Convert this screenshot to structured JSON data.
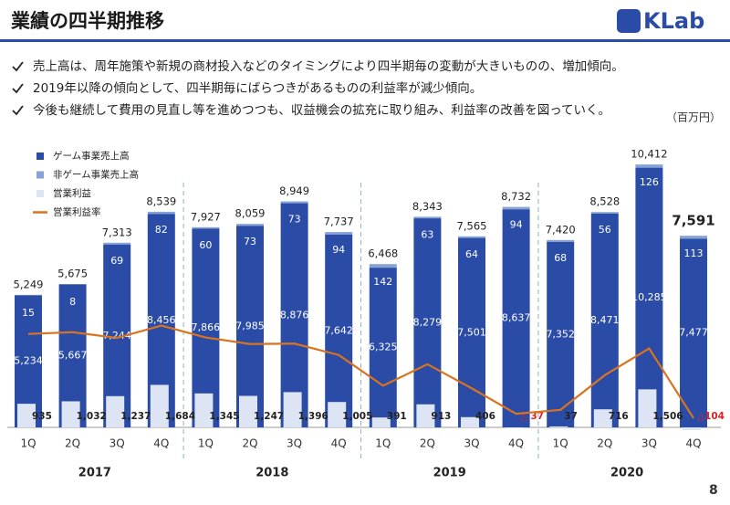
{
  "header": {
    "title": "業績の四半期推移",
    "logo": "KLab"
  },
  "bullets": [
    "売上高は、周年施策や新規の商材投入などのタイミングにより四半期毎の変動が大きいものの、増加傾向。",
    "2019年以降の傾向として、四半期毎にばらつきがあるものの利益率が減少傾向。",
    "今後も継続して費用の見直し等を進めつつも、収益機会の拡充に取り組み、利益率の改善を図っていく。"
  ],
  "page_number": "8",
  "chart_data": {
    "type": "bar",
    "unit_label": "（百万円）",
    "categories": [
      "1Q",
      "2Q",
      "3Q",
      "4Q",
      "1Q",
      "2Q",
      "3Q",
      "4Q",
      "1Q",
      "2Q",
      "3Q",
      "4Q",
      "1Q",
      "2Q",
      "3Q",
      "4Q"
    ],
    "groups": [
      "2017",
      "2018",
      "2019",
      "2020"
    ],
    "ylim": [
      0,
      11500
    ],
    "y2lim": [
      -3.5,
      62.7
    ],
    "total_labels": [
      "5,249",
      "5,675",
      "7,313",
      "8,539",
      "7,927",
      "8,059",
      "8,949",
      "7,737",
      "6,468",
      "8,343",
      "7,565",
      "8,732",
      "7,420",
      "8,528",
      "10,412",
      "7,591"
    ],
    "series": [
      {
        "name": "ゲーム事業売上高",
        "color": "#2b4ca6",
        "stack": "sales",
        "values": [
          5234,
          5667,
          7244,
          8456,
          7866,
          7985,
          8876,
          7642,
          6325,
          8279,
          7501,
          8637,
          7352,
          8471,
          10285,
          7477
        ],
        "value_labels": [
          "5,234",
          "5,667",
          "7,244",
          "8,456",
          "7,866",
          "7,985",
          "8,876",
          "7,642",
          "6,325",
          "8,279",
          "7,501",
          "8,637",
          "7,352",
          "8,471",
          "10,285",
          "7,477"
        ]
      },
      {
        "name": "非ゲーム事業売上高",
        "color": "#86a3d6",
        "stack": "sales",
        "values": [
          15,
          8,
          69,
          82,
          60,
          73,
          73,
          94,
          142,
          63,
          64,
          94,
          68,
          56,
          126,
          113
        ]
      },
      {
        "name": "営業利益",
        "color": "#dde4f3",
        "stack": "profit",
        "values": [
          935,
          1032,
          1237,
          1684,
          1345,
          1247,
          1396,
          1005,
          391,
          913,
          406,
          -37,
          37,
          716,
          1506,
          -104
        ],
        "value_labels": [
          "935",
          "1,032",
          "1,237",
          "1,684",
          "1,345",
          "1,247",
          "1,396",
          "1,005",
          "391",
          "913",
          "406",
          "△ 37",
          "37",
          "716",
          "1,506",
          "△104"
        ]
      },
      {
        "name": "営業利益率",
        "color": "#d9731f",
        "type": "line",
        "axis": "y2",
        "values": [
          17.8,
          18.2,
          16.9,
          19.7,
          17.0,
          15.5,
          15.6,
          13.0,
          6.0,
          10.9,
          5.4,
          -0.4,
          0.5,
          8.4,
          14.5,
          -1.4
        ]
      }
    ]
  }
}
